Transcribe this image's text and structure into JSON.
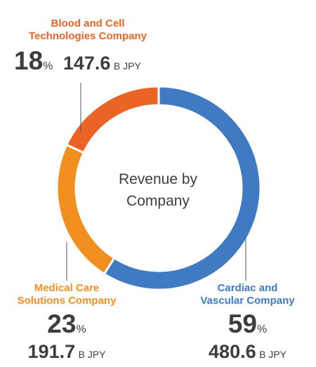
{
  "chart_data": {
    "type": "pie",
    "title": "Revenue by\nCompany",
    "unit_percent": "%",
    "unit_value": "B JPY",
    "segments": [
      {
        "name": "Cardiac and\nVascular Company",
        "percent": "59",
        "percent_value": 59,
        "value": "480.6",
        "value_num": 480.6,
        "color": "#3f7ac2"
      },
      {
        "name": "Medical Care\nSolutions Company",
        "percent": "23",
        "percent_value": 23,
        "value": "191.7",
        "value_num": 191.7,
        "color": "#f28f21"
      },
      {
        "name": "Blood and Cell\nTechnologies Company",
        "percent": "18",
        "percent_value": 18,
        "value": "147.6",
        "value_num": 147.6,
        "color": "#eb6425"
      }
    ]
  }
}
